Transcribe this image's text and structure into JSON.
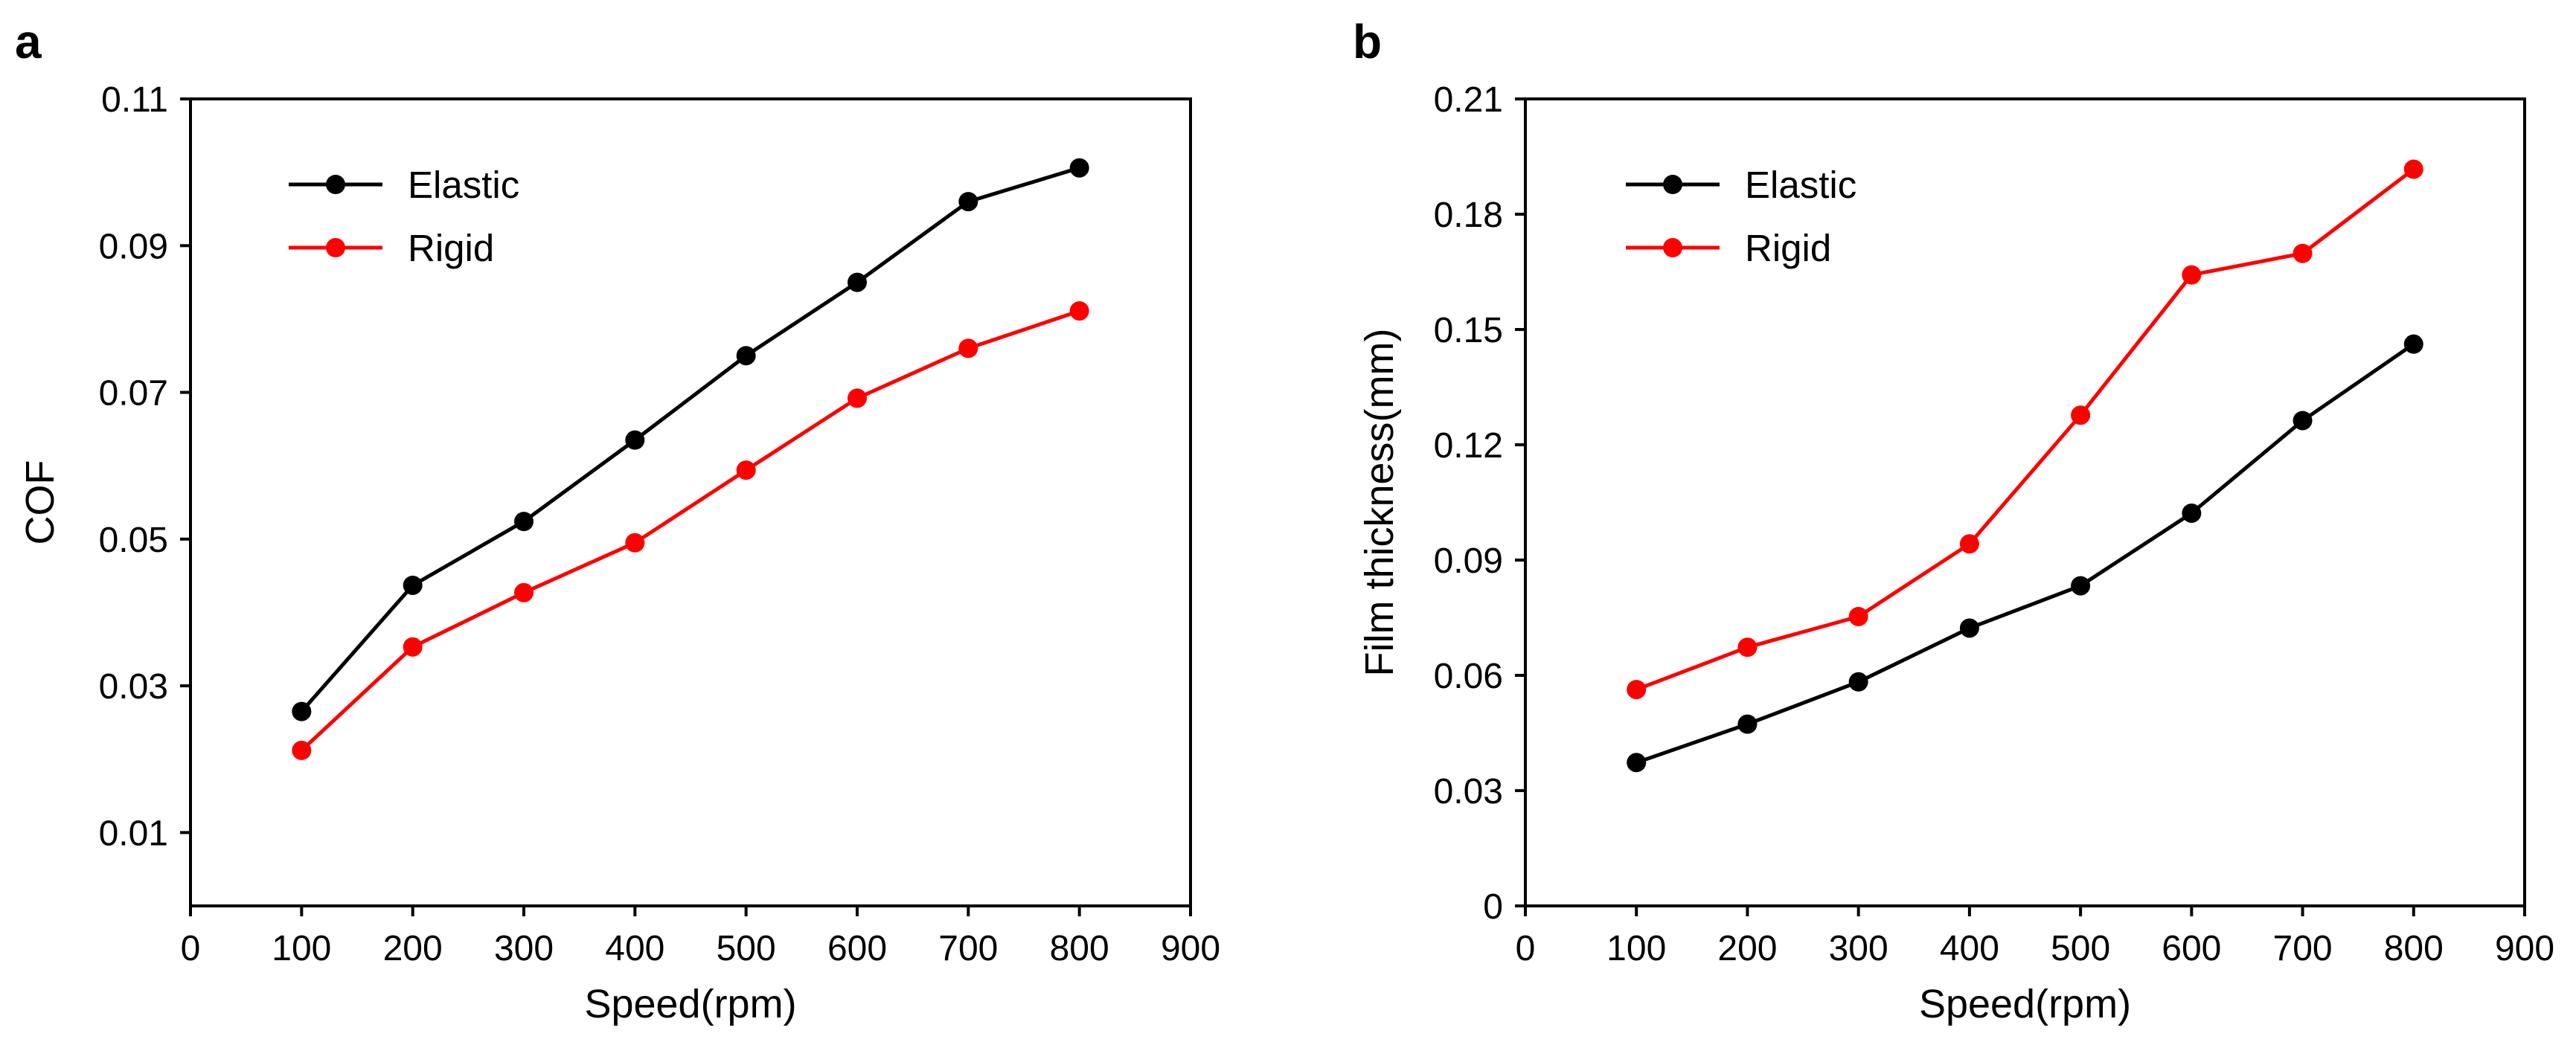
{
  "chart_data": [
    {
      "type": "line",
      "panel_label": "a",
      "xlabel": "Speed(rpm)",
      "ylabel": "COF",
      "xlim": [
        0,
        900
      ],
      "ylim": [
        0,
        0.11
      ],
      "xticks": [
        0,
        100,
        200,
        300,
        400,
        500,
        600,
        700,
        800,
        900
      ],
      "xtick_labels": [
        "0",
        "100",
        "200",
        "300",
        "400",
        "500",
        "600",
        "700",
        "800",
        "900"
      ],
      "yticks": [
        0.01,
        0.03,
        0.05,
        0.07,
        0.09,
        0.11
      ],
      "ytick_labels": [
        "0.01",
        "0.03",
        "0.05",
        "0.07",
        "0.09",
        "0.11"
      ],
      "legend_position": "top-left",
      "x": [
        100,
        200,
        300,
        400,
        500,
        600,
        700,
        800
      ],
      "series": [
        {
          "name": "Elastic",
          "color": "#000000",
          "values": [
            0.0265,
            0.0437,
            0.0524,
            0.0635,
            0.075,
            0.085,
            0.096,
            0.1006
          ]
        },
        {
          "name": "Rigid",
          "color": "#ff0000",
          "values": [
            0.0212,
            0.0353,
            0.0427,
            0.0495,
            0.0594,
            0.0692,
            0.076,
            0.0811
          ]
        }
      ]
    },
    {
      "type": "line",
      "panel_label": "b",
      "xlabel": "Speed(rpm)",
      "ylabel": "Film thickness(mm)",
      "xlim": [
        0,
        900
      ],
      "ylim": [
        0,
        0.21
      ],
      "xticks": [
        0,
        100,
        200,
        300,
        400,
        500,
        600,
        700,
        800,
        900
      ],
      "xtick_labels": [
        "0",
        "100",
        "200",
        "300",
        "400",
        "500",
        "600",
        "700",
        "800",
        "900"
      ],
      "yticks": [
        0,
        0.03,
        0.06,
        0.09,
        0.12,
        0.15,
        0.18,
        0.21
      ],
      "ytick_labels": [
        "0",
        "0.03",
        "0.06",
        "0.09",
        "0.12",
        "0.15",
        "0.18",
        "0.21"
      ],
      "legend_position": "top-left",
      "x": [
        100,
        200,
        300,
        400,
        500,
        600,
        700,
        800
      ],
      "series": [
        {
          "name": "Elastic",
          "color": "#000000",
          "values": [
            0.0373,
            0.0473,
            0.0583,
            0.0723,
            0.0833,
            0.1022,
            0.1263,
            0.1462
          ]
        },
        {
          "name": "Rigid",
          "color": "#ff0000",
          "values": [
            0.0563,
            0.0673,
            0.0753,
            0.0942,
            0.1277,
            0.1642,
            0.1698,
            0.1917
          ]
        }
      ]
    }
  ]
}
